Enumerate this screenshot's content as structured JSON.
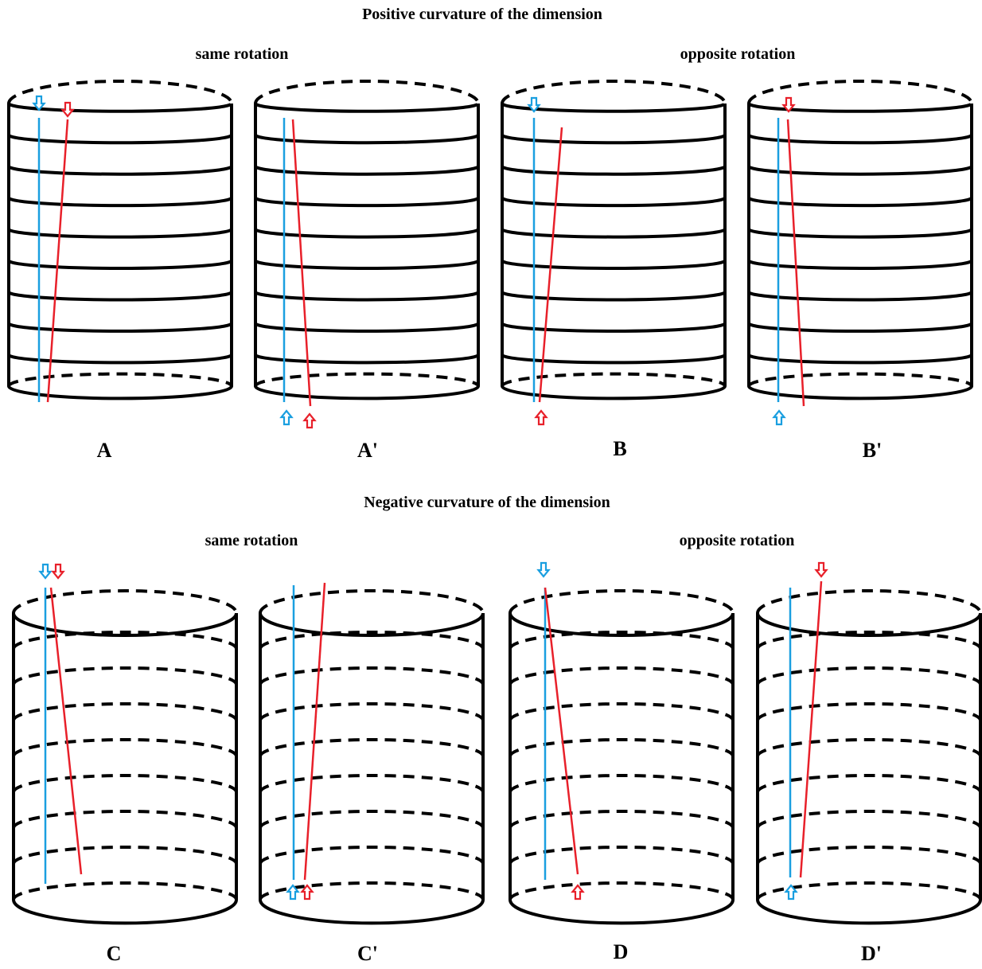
{
  "sections": {
    "positive": {
      "title": "Positive curvature of the dimension",
      "left_group": "same rotation",
      "right_group": "opposite rotation",
      "panels": [
        "A",
        "A'",
        "B",
        "B'"
      ]
    },
    "negative": {
      "title": "Negative curvature of the dimension",
      "left_group": "same rotation",
      "right_group": "opposite rotation",
      "panels": [
        "C",
        "C'",
        "D",
        "D'"
      ]
    }
  },
  "colors": {
    "ink": "#000000",
    "blue": "#1a9fe0",
    "red": "#e8202a"
  },
  "legend_icons": {
    "down_arrow": "down-arrow-icon",
    "up_arrow": "up-arrow-icon"
  }
}
